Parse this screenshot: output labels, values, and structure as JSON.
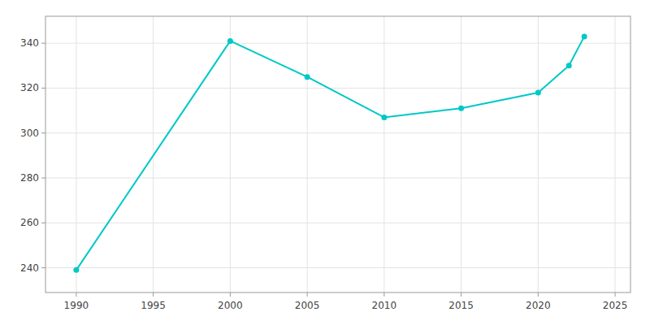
{
  "chart_data": {
    "type": "line",
    "x": [
      1990,
      2000,
      2005,
      2010,
      2015,
      2020,
      2022,
      2023
    ],
    "values": [
      239,
      341,
      325,
      307,
      311,
      318,
      330,
      343
    ],
    "color": "#00c8c8",
    "marker": "circle",
    "xlim": [
      1988,
      2026
    ],
    "ylim": [
      229,
      352
    ],
    "xticks": [
      1990,
      1995,
      2000,
      2005,
      2010,
      2015,
      2020,
      2025
    ],
    "yticks": [
      240,
      260,
      280,
      300,
      320,
      340
    ],
    "grid": true
  }
}
